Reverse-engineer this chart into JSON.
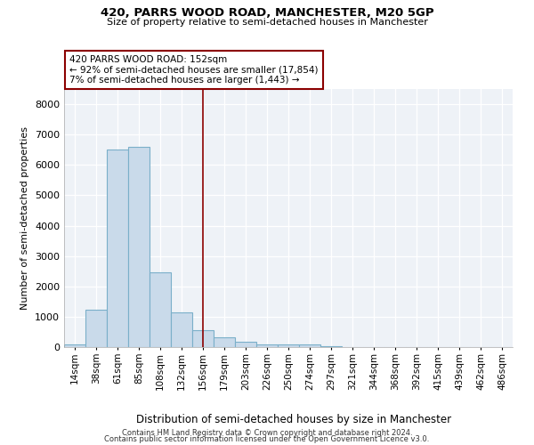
{
  "title1": "420, PARRS WOOD ROAD, MANCHESTER, M20 5GP",
  "title2": "Size of property relative to semi-detached houses in Manchester",
  "xlabel": "Distribution of semi-detached houses by size in Manchester",
  "ylabel": "Number of semi-detached properties",
  "bar_labels": [
    "14sqm",
    "38sqm",
    "61sqm",
    "85sqm",
    "108sqm",
    "132sqm",
    "156sqm",
    "179sqm",
    "203sqm",
    "226sqm",
    "250sqm",
    "274sqm",
    "297sqm",
    "321sqm",
    "344sqm",
    "368sqm",
    "392sqm",
    "415sqm",
    "439sqm",
    "462sqm",
    "486sqm"
  ],
  "bar_values": [
    100,
    1220,
    6500,
    6600,
    2450,
    1150,
    550,
    320,
    175,
    100,
    80,
    80,
    40,
    10,
    3,
    1,
    0,
    0,
    0,
    0,
    0
  ],
  "bar_color": "#c9daea",
  "bar_edgecolor": "#7aafc9",
  "bar_linewidth": 0.8,
  "vline_color": "#8b0000",
  "vline_linewidth": 1.2,
  "vline_x": 6.0,
  "annotation_text": "420 PARRS WOOD ROAD: 152sqm\n← 92% of semi-detached houses are smaller (17,854)\n7% of semi-detached houses are larger (1,443) →",
  "annotation_box_color": "#8b0000",
  "ylim": [
    0,
    8500
  ],
  "yticks": [
    0,
    1000,
    2000,
    3000,
    4000,
    5000,
    6000,
    7000,
    8000
  ],
  "background_color": "#eef2f7",
  "grid_color": "#ffffff",
  "footer1": "Contains HM Land Registry data © Crown copyright and database right 2024.",
  "footer2": "Contains public sector information licensed under the Open Government Licence v3.0."
}
